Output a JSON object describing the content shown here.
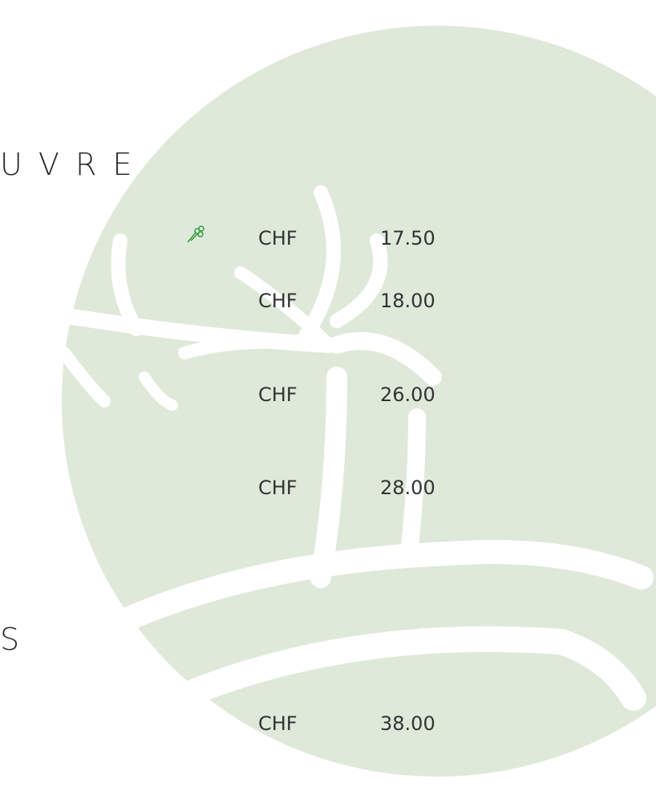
{
  "headings": [
    "U V R E",
    "S"
  ],
  "items": [
    {
      "currency": "CHF",
      "price": "17.50"
    },
    {
      "currency": "CHF",
      "price": "18.00"
    },
    {
      "currency": "CHF",
      "price": "26.00"
    },
    {
      "currency": "CHF",
      "price": "28.00"
    },
    {
      "currency": "CHF",
      "price": "38.00"
    }
  ]
}
